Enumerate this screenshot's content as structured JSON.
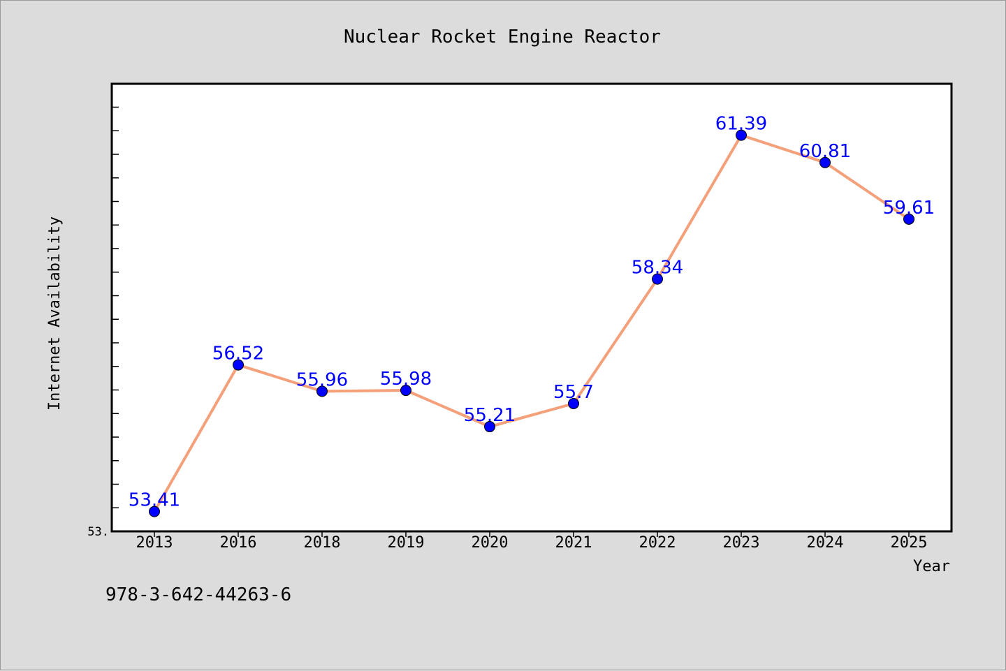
{
  "chart_data": {
    "type": "line",
    "title": "Nuclear Rocket Engine Reactor",
    "xlabel": "Year",
    "ylabel": "Internet Availability",
    "categories": [
      "2013",
      "2016",
      "2018",
      "2019",
      "2020",
      "2021",
      "2022",
      "2023",
      "2024",
      "2025"
    ],
    "series": [
      {
        "values": [
          53.41,
          56.52,
          55.96,
          55.98,
          55.21,
          55.7,
          58.34,
          61.39,
          60.81,
          59.61
        ],
        "labels": [
          "53.41",
          "56.52",
          "55.96",
          "55.98",
          "55.21",
          "55.7",
          "58.34",
          "61.39",
          "60.81",
          "59.61"
        ]
      }
    ],
    "ylim": [
      52.99,
      62.48
    ],
    "y_tick_label": "53.",
    "grid": false,
    "legend": "none",
    "colors": {
      "line": "#f4a07a",
      "marker": "#0000ff",
      "data_label": "#0000ff",
      "plot_background": "#ffffff",
      "figure_background": "#dcdcdc"
    }
  },
  "footer": {
    "code": "978-3-642-44263-6"
  }
}
